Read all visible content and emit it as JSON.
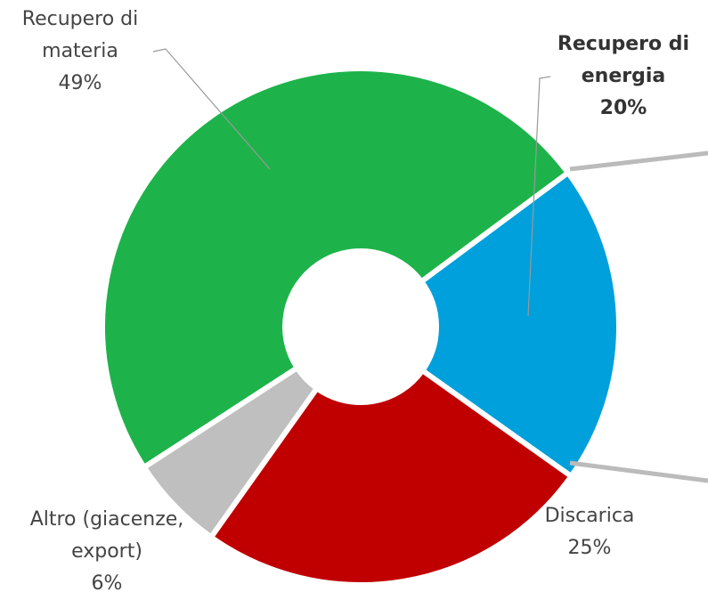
{
  "chart_data": {
    "type": "donut",
    "categories": [
      "Recupero di materia",
      "Recupero di energia",
      "Discarica",
      "Altro (giacenze, export)"
    ],
    "values": [
      49,
      20,
      25,
      6
    ],
    "value_labels": [
      "49%",
      "20%",
      "25%",
      "6%"
    ],
    "colors": [
      "#1db34a",
      "#00a0dc",
      "#c00000",
      "#bfbfbf"
    ]
  }
}
